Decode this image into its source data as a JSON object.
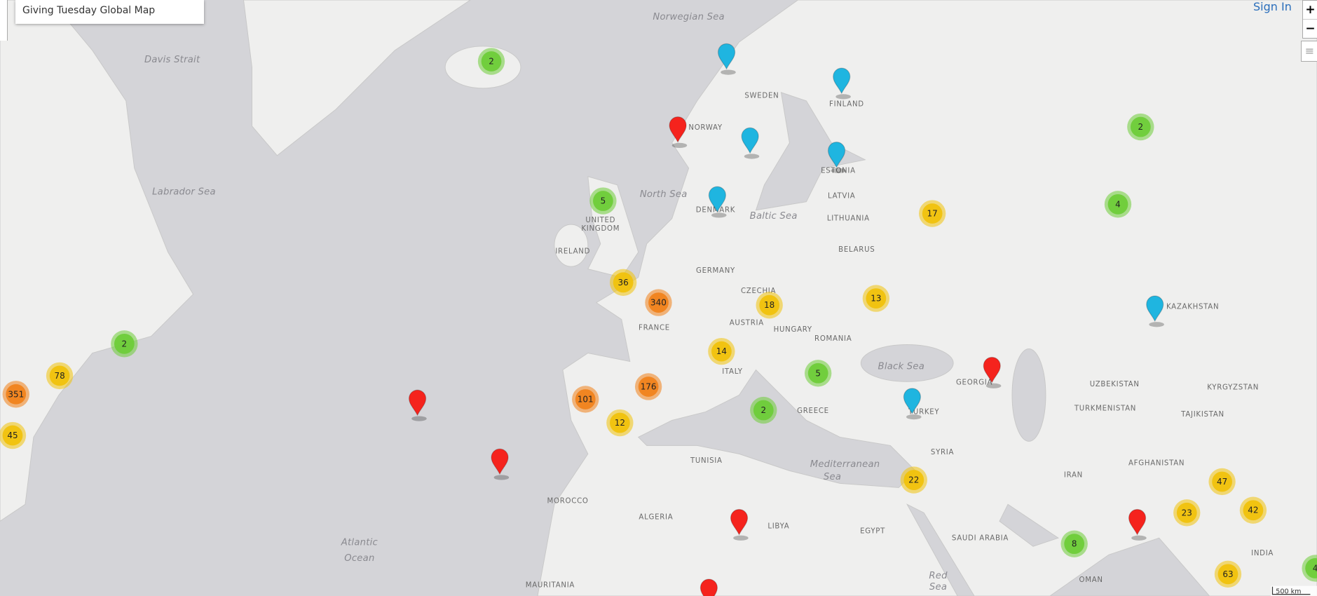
{
  "header": {
    "title": "Giving Tuesday Global Map",
    "sign_in": "Sign In"
  },
  "controls": {
    "zoom_in": "+",
    "zoom_out": "−"
  },
  "map": {
    "clusters": [
      2,
      5,
      36,
      340,
      2,
      78,
      351,
      45,
      18,
      13,
      17,
      2,
      4,
      14,
      5,
      2,
      101,
      176,
      12,
      22,
      47,
      23,
      42,
      8,
      63,
      4
    ],
    "labels": [
      "Norwegian Sea",
      "Davis Strait",
      "SWEDEN",
      "FINLAND",
      "NORWAY",
      "ESTONIA",
      "LATVIA",
      "North Sea",
      "Labrador Sea",
      "DENMARK",
      "Baltic Sea",
      "LITHUANIA",
      "UNITED",
      "KINGDOM",
      "IRELAND",
      "BELARUS",
      "GERMANY",
      "CZECHIA",
      "FRANCE",
      "AUSTRIA",
      "HUNGARY",
      "ROMANIA",
      "KAZAKHSTAN",
      "ITALY",
      "Black Sea",
      "GEORGIA",
      "UZBEKISTAN",
      "KYRGYZSTAN",
      "TURKMENISTAN",
      "TAJIKISTAN",
      "GREECE",
      "TURKEY",
      "SYRIA",
      "TUNISIA",
      "Mediterranean",
      "Sea",
      "AFGHANISTAN",
      "IRAN",
      "MOROCCO",
      "ALGERIA",
      "LIBYA",
      "EGYPT",
      "SAUDI ARABIA",
      "INDIA",
      "Atlantic",
      "Ocean",
      "MAURITANIA",
      "OMAN",
      "Red",
      "Sea"
    ],
    "scale": "500 km"
  }
}
